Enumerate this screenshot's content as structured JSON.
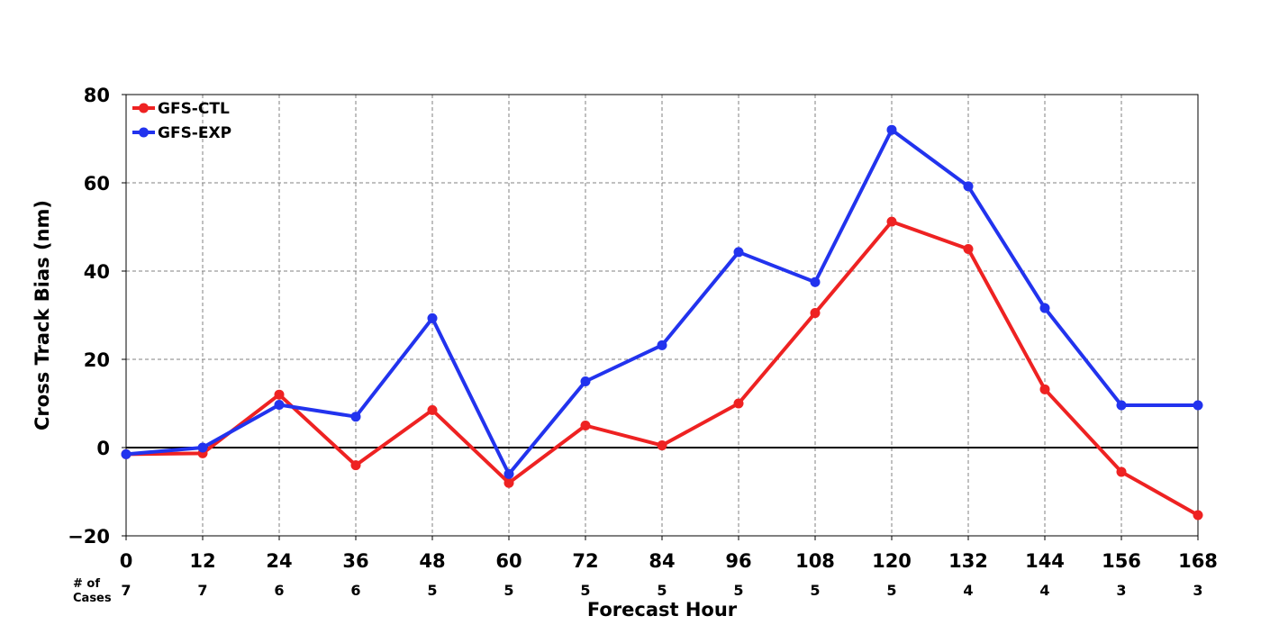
{
  "chart_data": {
    "type": "line",
    "title": "",
    "xlabel": "Forecast Hour",
    "ylabel": "Cross Track Bias (nm)",
    "x": [
      0,
      12,
      24,
      36,
      48,
      60,
      72,
      84,
      96,
      108,
      120,
      132,
      144,
      156,
      168
    ],
    "xlim": [
      0,
      168
    ],
    "ylim": [
      -20,
      80
    ],
    "yticks": [
      -20,
      0,
      20,
      40,
      60,
      80
    ],
    "grid": true,
    "legend_position": "top-left",
    "cases_label": [
      "# of",
      "Cases"
    ],
    "cases": [
      7,
      7,
      6,
      6,
      5,
      5,
      5,
      5,
      5,
      5,
      5,
      4,
      4,
      3,
      3
    ],
    "series": [
      {
        "name": "GFS-CTL",
        "color": "#ee2222",
        "values": [
          -1.5,
          -1.3,
          12,
          -4,
          8.5,
          -8,
          5,
          0.5,
          10,
          30.5,
          51.2,
          45,
          13.2,
          -5.5,
          -15.3
        ]
      },
      {
        "name": "GFS-EXP",
        "color": "#2233ee",
        "values": [
          -1.5,
          0,
          9.7,
          7,
          29.3,
          -6,
          15,
          23.2,
          44.3,
          37.5,
          72,
          59.2,
          31.6,
          9.6,
          9.6
        ]
      }
    ]
  }
}
